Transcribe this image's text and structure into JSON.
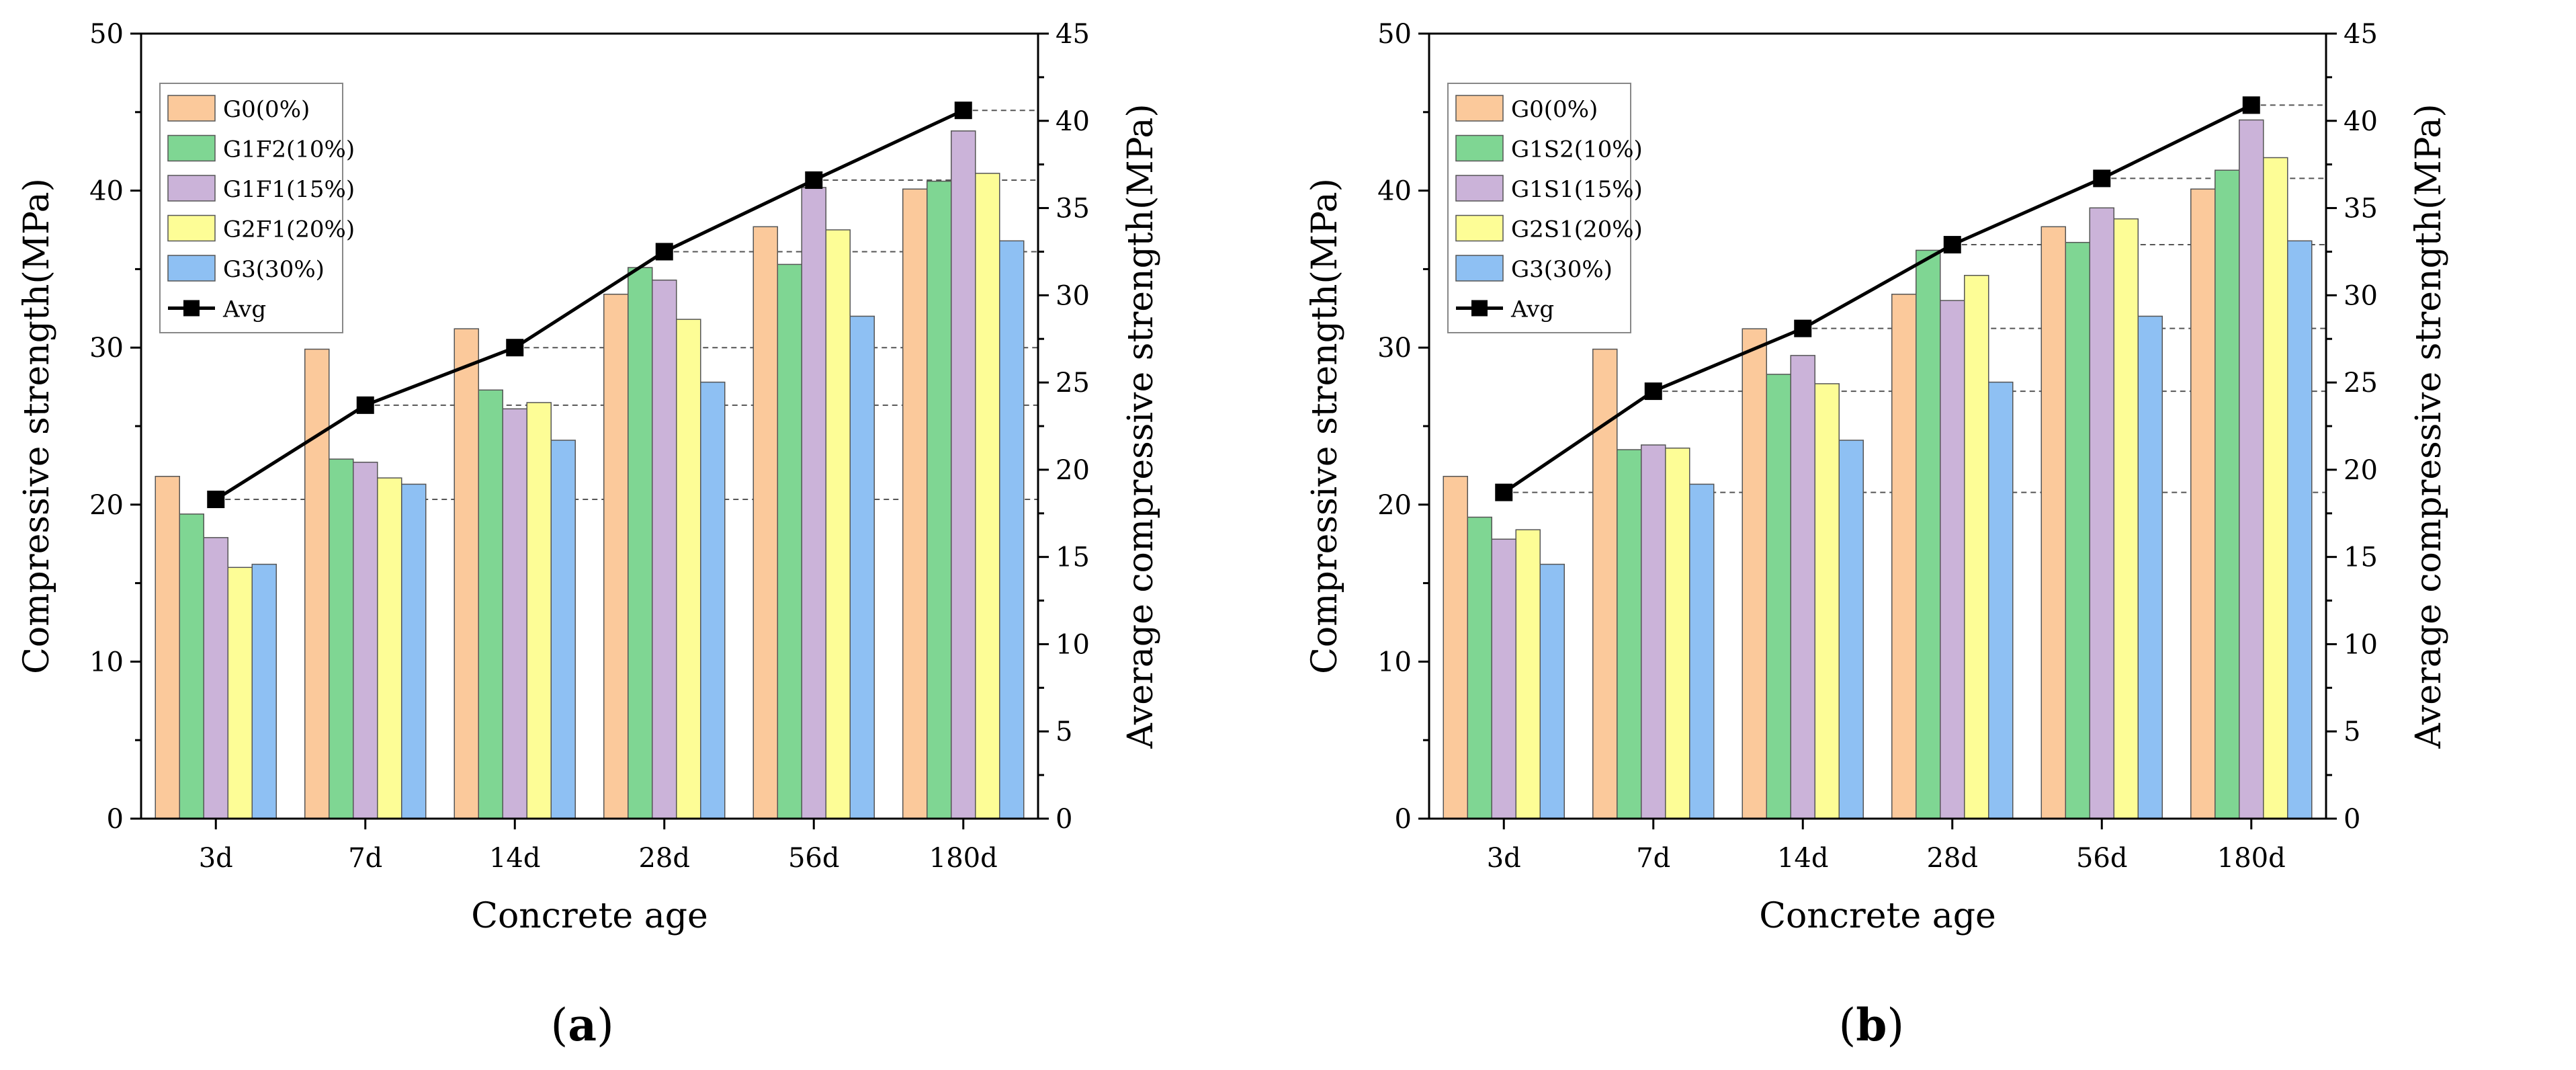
{
  "chart_data": [
    {
      "type": "bar",
      "panel_label": "(a)",
      "panel_letter": "a",
      "categories": [
        "3d",
        "7d",
        "14d",
        "28d",
        "56d",
        "180d"
      ],
      "series": [
        {
          "name": "G0(0%)",
          "color": "#fbc99b",
          "values": [
            21.8,
            29.9,
            31.2,
            33.4,
            37.7,
            40.1
          ]
        },
        {
          "name": "G1F2(10%)",
          "color": "#7fd693",
          "values": [
            19.4,
            22.9,
            27.3,
            35.1,
            35.3,
            40.6
          ]
        },
        {
          "name": "G1F1(15%)",
          "color": "#cbb3d9",
          "values": [
            17.9,
            22.7,
            26.1,
            34.3,
            40.2,
            43.8
          ]
        },
        {
          "name": "G2F1(20%)",
          "color": "#fdfd96",
          "values": [
            16.0,
            21.7,
            26.5,
            31.8,
            37.5,
            41.1
          ]
        },
        {
          "name": "G3(30%)",
          "color": "#8ec0f3",
          "values": [
            16.2,
            21.3,
            24.1,
            27.8,
            32.0,
            36.8
          ]
        }
      ],
      "avg": {
        "name": "Avg",
        "values": [
          18.3,
          23.7,
          27.0,
          32.5,
          36.6,
          40.6
        ]
      },
      "xlabel": "Concrete age",
      "ylabel": "Compressive strength(MPa)",
      "y2label": "Average compressive strength(MPa)",
      "ylim": [
        0,
        50
      ],
      "y2lim": [
        0,
        45
      ],
      "yticks": [
        "0",
        "10",
        "20",
        "30",
        "40",
        "50"
      ],
      "y2ticks": [
        "0",
        "5",
        "10",
        "15",
        "20",
        "25",
        "30",
        "35",
        "40",
        "45"
      ],
      "legend_position": "top-left",
      "grid": false
    },
    {
      "type": "bar",
      "panel_label": "(b)",
      "panel_letter": "b",
      "categories": [
        "3d",
        "7d",
        "14d",
        "28d",
        "56d",
        "180d"
      ],
      "series": [
        {
          "name": "G0(0%)",
          "color": "#fbc99b",
          "values": [
            21.8,
            29.9,
            31.2,
            33.4,
            37.7,
            40.1
          ]
        },
        {
          "name": "G1S2(10%)",
          "color": "#7fd693",
          "values": [
            19.2,
            23.5,
            28.3,
            36.2,
            36.7,
            41.3
          ]
        },
        {
          "name": "G1S1(15%)",
          "color": "#cbb3d9",
          "values": [
            17.8,
            23.8,
            29.5,
            33.0,
            38.9,
            44.5
          ]
        },
        {
          "name": "G2S1(20%)",
          "color": "#fdfd96",
          "values": [
            18.4,
            23.6,
            27.7,
            34.6,
            38.2,
            42.1
          ]
        },
        {
          "name": "G3(30%)",
          "color": "#8ec0f3",
          "values": [
            16.2,
            21.3,
            24.1,
            27.8,
            32.0,
            36.8
          ]
        }
      ],
      "avg": {
        "name": "Avg",
        "values": [
          18.7,
          24.5,
          28.1,
          32.9,
          36.7,
          40.9
        ]
      },
      "xlabel": "Concrete age",
      "ylabel": "Compressive strength(MPa)",
      "y2label": "Average compressive strength(MPa)",
      "ylim": [
        0,
        50
      ],
      "y2lim": [
        0,
        45
      ],
      "yticks": [
        "0",
        "10",
        "20",
        "30",
        "40",
        "50"
      ],
      "y2ticks": [
        "0",
        "5",
        "10",
        "15",
        "20",
        "25",
        "30",
        "35",
        "40",
        "45"
      ],
      "legend_position": "top-left",
      "grid": false
    }
  ]
}
